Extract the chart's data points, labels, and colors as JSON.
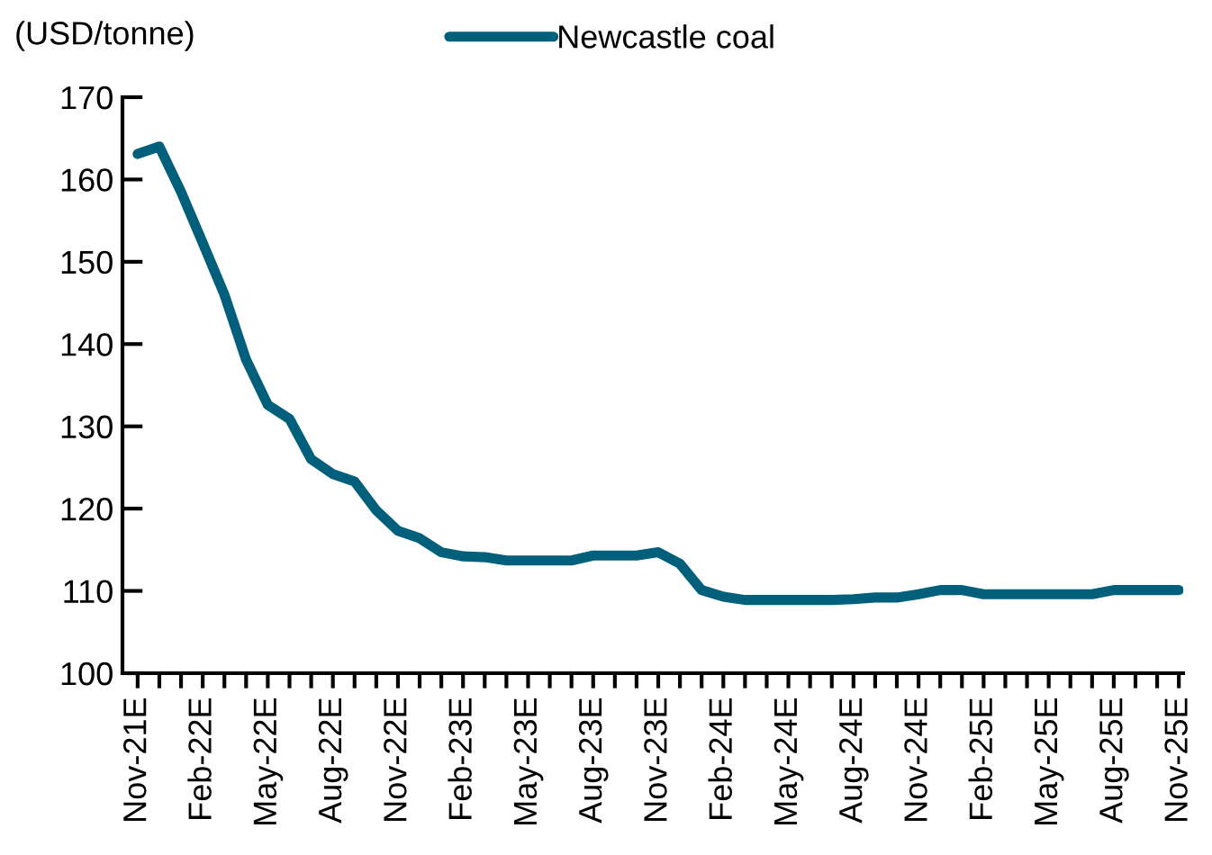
{
  "chart_data": {
    "type": "line",
    "ylabel": "(USD/tonne)",
    "categories": [
      "Nov-21E",
      null,
      null,
      "Feb-22E",
      null,
      null,
      "May-22E",
      null,
      null,
      "Aug-22E",
      null,
      null,
      "Nov-22E",
      null,
      null,
      "Feb-23E",
      null,
      null,
      "May-23E",
      null,
      null,
      "Aug-23E",
      null,
      null,
      "Nov-23E",
      null,
      null,
      "Feb-24E",
      null,
      null,
      "May-24E",
      null,
      null,
      "Aug-24E",
      null,
      null,
      "Nov-24E",
      null,
      null,
      "Feb-25E",
      null,
      null,
      "May-25E",
      null,
      null,
      "Aug-25E",
      null,
      null,
      "Nov-25E"
    ],
    "series": [
      {
        "name": "Newcastle coal",
        "color": "#005f7a",
        "values": [
          163.1,
          164.0,
          158.5,
          152.3,
          146.0,
          138.1,
          132.6,
          130.9,
          126.0,
          124.2,
          123.3,
          119.8,
          117.3,
          116.4,
          114.7,
          114.2,
          114.1,
          113.7,
          113.7,
          113.7,
          113.7,
          114.3,
          114.3,
          114.3,
          114.7,
          113.3,
          110.1,
          109.3,
          108.9,
          108.9,
          108.9,
          108.9,
          108.9,
          109.0,
          109.2,
          109.2,
          109.6,
          110.1,
          110.1,
          109.6,
          109.6,
          109.6,
          109.6,
          109.6,
          109.6,
          110.1,
          110.1,
          110.1,
          110.1
        ]
      }
    ],
    "ylim": [
      100,
      170
    ],
    "yticks": [
      100,
      110,
      120,
      130,
      140,
      150,
      160,
      170
    ],
    "grid": false,
    "legend": "top",
    "marker": "none",
    "line_style": "solid"
  }
}
